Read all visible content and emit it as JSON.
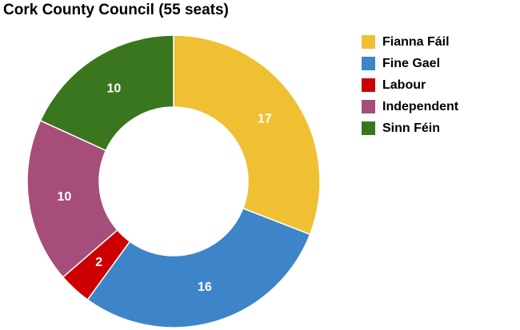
{
  "chart_data": {
    "type": "pie",
    "title": "Cork County Council (55 seats)",
    "categories": [
      "Fianna Fáil",
      "Fine Gael",
      "Labour",
      "Independent",
      "Sinn Féin"
    ],
    "values": [
      17,
      16,
      2,
      10,
      10
    ],
    "data_labels": [
      "17",
      "16",
      "2",
      "10",
      "10"
    ],
    "colors": [
      "#f0c033",
      "#3d85c8",
      "#cc0000",
      "#a64d79",
      "#3a761d"
    ],
    "donut": true,
    "legend_position": "right"
  }
}
